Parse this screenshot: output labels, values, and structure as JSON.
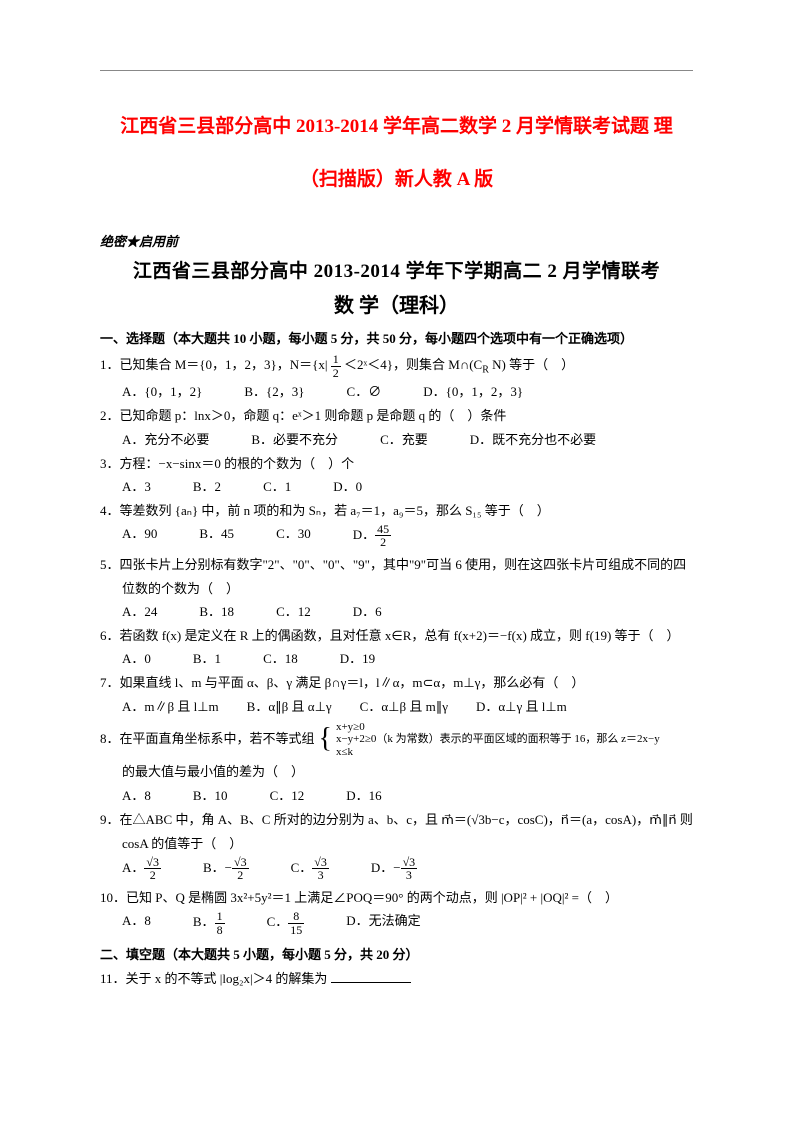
{
  "top_title": "江西省三县部分高中 2013-2014 学年高二数学 2 月学情联考试题 理",
  "sub_title": "（扫描版）新人教 A 版",
  "scan_note": "绝密★启用前",
  "scan_title": "江西省三县部分高中 2013-2014 学年下学期高二 2 月学情联考",
  "scan_subject": "数 学（理科）",
  "section1": "一、选择题（本大题共 10 小题，每小题 5 分，共 50 分，每小题四个选项中有一个正确选项）",
  "q1": {
    "stem_a": "1．已知集合 M＝{0，1，2，3}，N＝{x|",
    "stem_b": "＜2ˣ＜4}，则集合 M∩(C",
    "stem_c": "N) 等于（　）",
    "A": "A．{0，1，2}",
    "B": "B．{2，3}",
    "C": "C．∅",
    "D": "D．{0，1，2，3}"
  },
  "q2": {
    "stem": "2．已知命题 p：lnx＞0，命题 q：eˣ＞1 则命题 p 是命题 q 的（　）条件",
    "A": "A．充分不必要",
    "B": "B．必要不充分",
    "C": "C．充要",
    "D": "D．既不充分也不必要"
  },
  "q3": {
    "stem": "3．方程：−x−sinx＝0 的根的个数为（　）个",
    "A": "A．3",
    "B": "B．2",
    "C": "C．1",
    "D": "D．0"
  },
  "q4": {
    "stem": "4．等差数列 {aₙ} 中，前 n 项的和为 Sₙ，若 a₇＝1，a₉＝5，那么 S₁₅ 等于（　）",
    "A": "A．90",
    "B": "B．45",
    "C": "C．30",
    "D_pre": "D．",
    "D_num": "45",
    "D_den": "2"
  },
  "q5": {
    "stem": "5．四张卡片上分别标有数字\"2\"、\"0\"、\"0\"、\"9\"，其中\"9\"可当 6 使用，则在这四张卡片可组成不同的四",
    "stem2": "位数的个数为（　）",
    "A": "A．24",
    "B": "B．18",
    "C": "C．12",
    "D": "D．6"
  },
  "q6": {
    "stem": "6．若函数 f(x) 是定义在 R 上的偶函数，且对任意 x∈R，总有 f(x+2)＝−f(x) 成立，则 f(19) 等于（　）",
    "A": "A．0",
    "B": "B．1",
    "C": "C．18",
    "D": "D．19"
  },
  "q7": {
    "stem": "7．如果直线 l、m 与平面 α、β、γ 满足 β∩γ＝l，l∥α，m⊂α，m⊥γ，那么必有（　）",
    "A": "A．m∥β 且 l⊥m",
    "B": "B．α∥β 且 α⊥γ",
    "C": "C．α⊥β 且 m∥γ",
    "D": "D．α⊥γ 且 l⊥m"
  },
  "q8": {
    "stem_a": "8．在平面直角坐标系中，若不等式组",
    "brace1": "x+y≥0",
    "brace2": "x−y+2≥0（k 为常数）表示的平面区域的面积等于 16，那么 z＝2x−y",
    "brace3": "x≤k",
    "stem2": "的最大值与最小值的差为（　）",
    "A": "A．8",
    "B": "B．10",
    "C": "C．12",
    "D": "D．16"
  },
  "q9": {
    "stem": "9．在△ABC 中，角 A、B、C 所对的边分别为 a、b、c，且 m⃗＝(√3b−c，cosC)，n⃗＝(a，cosA)，m⃗∥n⃗ 则",
    "stem2": "cosA 的值等于（　）",
    "A_pre": "A．",
    "A_num": "√3",
    "A_den": "2",
    "B_pre": "B．−",
    "B_num": "√3",
    "B_den": "2",
    "C_pre": "C．",
    "C_num": "√3",
    "C_den": "3",
    "D_pre": "D．−",
    "D_num": "√3",
    "D_den": "3"
  },
  "q10": {
    "stem": "10．已知 P、Q 是椭圆 3x²+5y²＝1 上满足∠POQ＝90° 的两个动点，则 |OP|² + |OQ|² =（　）",
    "A": "A．8",
    "B_pre": "B．",
    "B_num": "1",
    "B_den": "8",
    "C_pre": "C．",
    "C_num": "8",
    "C_den": "15",
    "D": "D．无法确定"
  },
  "section2": "二、填空题（本大题共 5 小题，每小题 5 分，共 20 分）",
  "q11": "11．关于 x 的不等式 |log₂x|＞4 的解集为",
  "colors": {
    "red": "#ff0000",
    "text": "#000000",
    "bg": "#ffffff",
    "rule": "#888888"
  }
}
